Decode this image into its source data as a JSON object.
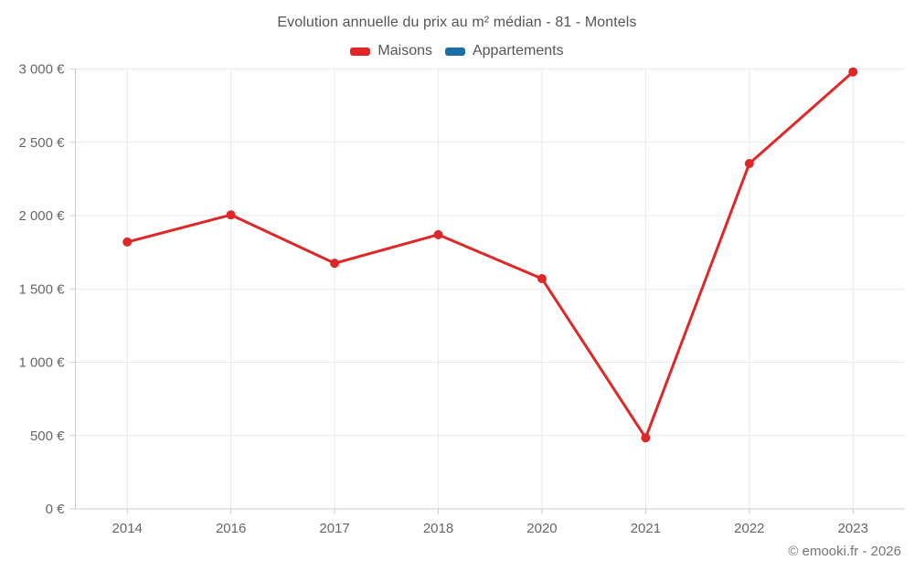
{
  "title": "Evolution annuelle du prix au m² médian - 81 - Montels",
  "legend": [
    {
      "label": "Maisons",
      "color": "#df2727"
    },
    {
      "label": "Appartements",
      "color": "#1a6fa8"
    }
  ],
  "footer": {
    "credit": "© emooki.fr - 2026"
  },
  "colors": {
    "grid": "#e9e9e9",
    "axis": "#cccccc",
    "tick_label": "#666666",
    "title_text": "#545454",
    "marker_red": "#df2727"
  },
  "chart_data": {
    "type": "line",
    "title": "Evolution annuelle du prix au m² médian - 81 - Montels",
    "categories": [
      "2014",
      "2016",
      "2017",
      "2018",
      "2020",
      "2021",
      "2022",
      "2023"
    ],
    "series": [
      {
        "name": "Maisons",
        "color": "#df2727",
        "values": [
          1820,
          2005,
          1675,
          1870,
          1570,
          485,
          2355,
          2980
        ]
      },
      {
        "name": "Appartements",
        "color": "#1a6fa8",
        "values": []
      }
    ],
    "xlabel": "",
    "ylabel": "",
    "ylim": [
      0,
      3000
    ],
    "ytick_step": 500,
    "ytick_labels": [
      "0 €",
      "500 €",
      "1 000 €",
      "1 500 €",
      "2 000 €",
      "2 500 €",
      "3 000 €"
    ],
    "grid": true,
    "legend_position": "top",
    "marker_radius": 5,
    "line_width": 3
  }
}
